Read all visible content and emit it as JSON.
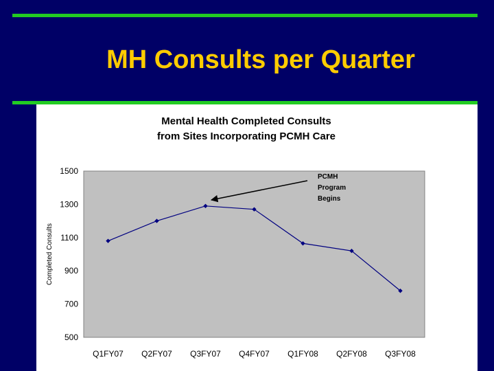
{
  "slide": {
    "title": "MH Consults per Quarter",
    "accent_color": "#22cc22",
    "background_color": "#000066",
    "title_color": "#ffcc00"
  },
  "chart_data": {
    "type": "line",
    "title_lines": [
      "Mental Health Completed Consults",
      "from Sites Incorporating PCMH Care"
    ],
    "xlabel": "",
    "ylabel": "Completed Consults",
    "categories": [
      "Q1FY07",
      "Q2FY07",
      "Q3FY07",
      "Q4FY07",
      "Q1FY08",
      "Q2FY08",
      "Q3FY08"
    ],
    "series": [
      {
        "values": [
          1080,
          1200,
          1290,
          1270,
          1065,
          1020,
          780
        ]
      }
    ],
    "ylim": [
      500,
      1500
    ],
    "yticks": [
      500,
      700,
      900,
      1100,
      1300,
      1500
    ],
    "grid": false,
    "plot_background": "#c0c0c0",
    "line_color": "#000080",
    "annotation": {
      "lines": [
        "PCMH",
        "Program",
        "Begins"
      ],
      "points_to": "Q3FY07"
    }
  }
}
